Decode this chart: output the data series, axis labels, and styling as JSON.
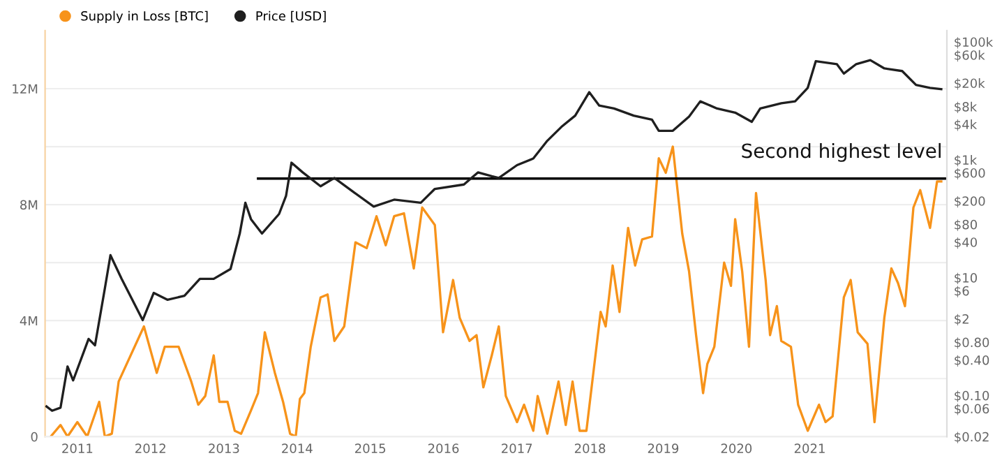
{
  "chart_data": {
    "type": "line",
    "legend": "top left",
    "grid": "y",
    "xlim": [
      "2010-07-24",
      "2022-11-16"
    ],
    "xticks": [
      "2011",
      "2012",
      "2013",
      "2014",
      "2015",
      "2016",
      "2017",
      "2018",
      "2019",
      "2020",
      "2021"
    ],
    "ylim": [
      0,
      14000000
    ],
    "yticks": [
      {
        "value": 0,
        "label": "0"
      },
      {
        "value": 2000000,
        "label": null
      },
      {
        "value": 4000000,
        "label": "4M"
      },
      {
        "value": 6000000,
        "label": null
      },
      {
        "value": 8000000,
        "label": "8M"
      },
      {
        "value": 10000000,
        "label": null
      },
      {
        "value": 12000000,
        "label": "12M"
      }
    ],
    "log": "y2",
    "y2lim": [
      0.02,
      155000
    ],
    "y2ticks": [
      {
        "value": 0.02,
        "label": "$0.02"
      },
      {
        "value": 0.06,
        "label": "$0.06"
      },
      {
        "value": 0.1,
        "label": "$0.10"
      },
      {
        "value": 0.4,
        "label": "$0.40"
      },
      {
        "value": 0.8,
        "label": "$0.80"
      },
      {
        "value": 2,
        "label": "$2"
      },
      {
        "value": 6,
        "label": "$6"
      },
      {
        "value": 10,
        "label": "$10"
      },
      {
        "value": 40,
        "label": "$40"
      },
      {
        "value": 80,
        "label": "$80"
      },
      {
        "value": 200,
        "label": "$200"
      },
      {
        "value": 600,
        "label": "$600"
      },
      {
        "value": 1000,
        "label": "$1k"
      },
      {
        "value": 4000,
        "label": "$4k"
      },
      {
        "value": 8000,
        "label": "$8k"
      },
      {
        "value": 20000,
        "label": "$20k"
      },
      {
        "value": 60000,
        "label": "$60k"
      },
      {
        "value": 100000,
        "label": "$100k"
      }
    ],
    "annotations": [
      "Second highest level"
    ],
    "series": [
      {
        "name": "Supply in Loss [BTC]",
        "axis": "y",
        "color": "#f7931a",
        "x": [
          "2010-08-21",
          "2010-10-09",
          "2010-11-13",
          "2011-01-01",
          "2011-02-19",
          "2011-04-20",
          "2011-05-18",
          "2011-06-22",
          "2011-07-26",
          "2011-11-09",
          "2011-11-29",
          "2012-02-01",
          "2012-03-12",
          "2012-05-20",
          "2012-07-22",
          "2012-08-26",
          "2012-09-30",
          "2012-11-11",
          "2012-12-09",
          "2013-01-19",
          "2013-02-24",
          "2013-03-28",
          "2013-05-16",
          "2013-06-20",
          "2013-07-24",
          "2013-09-12",
          "2013-10-23",
          "2013-11-27",
          "2013-12-25",
          "2014-01-15",
          "2014-02-06",
          "2014-03-10",
          "2014-04-28",
          "2014-06-02",
          "2014-07-06",
          "2014-08-24",
          "2014-10-19",
          "2014-12-14",
          "2015-02-01",
          "2015-03-19",
          "2015-04-30",
          "2015-06-18",
          "2015-08-06",
          "2015-09-17",
          "2015-11-19",
          "2015-12-30",
          "2016-02-18",
          "2016-03-22",
          "2016-05-10",
          "2016-06-14",
          "2016-07-18",
          "2016-08-29",
          "2016-10-03",
          "2016-11-07",
          "2017-01-02",
          "2017-02-06",
          "2017-03-24",
          "2017-04-15",
          "2017-06-02",
          "2017-07-28",
          "2017-09-02",
          "2017-10-06",
          "2017-11-10",
          "2017-12-14",
          "2018-02-23",
          "2018-03-20",
          "2018-04-24",
          "2018-05-28",
          "2018-07-10",
          "2018-08-14",
          "2018-09-18",
          "2018-11-06",
          "2018-12-10",
          "2019-01-14",
          "2019-02-18",
          "2019-04-06",
          "2019-05-10",
          "2019-06-14",
          "2019-07-19",
          "2019-08-09",
          "2019-09-13",
          "2019-11-01",
          "2019-12-05",
          "2019-12-26",
          "2020-01-30",
          "2020-03-04",
          "2020-04-08",
          "2020-05-26",
          "2020-06-17",
          "2020-07-21",
          "2020-08-12",
          "2020-09-29",
          "2020-11-04",
          "2020-12-22",
          "2021-02-16",
          "2021-03-21",
          "2021-04-25",
          "2021-06-20",
          "2021-07-24",
          "2021-08-28",
          "2021-10-16",
          "2021-11-20",
          "2022-01-08",
          "2022-02-12",
          "2022-03-17",
          "2022-04-21",
          "2022-06-02",
          "2022-07-06",
          "2022-08-24",
          "2022-09-28",
          "2022-10-19"
        ],
        "values": [
          0,
          400000,
          0,
          500000,
          0,
          1200000,
          0,
          100000,
          1900000,
          3500000,
          3800000,
          2200000,
          3100000,
          3100000,
          1900000,
          1100000,
          1400000,
          2800000,
          1200000,
          1200000,
          200000,
          100000,
          900000,
          1500000,
          3600000,
          2200000,
          1200000,
          100000,
          0,
          1300000,
          1500000,
          3100000,
          4800000,
          4900000,
          3300000,
          3800000,
          6700000,
          6500000,
          7600000,
          6600000,
          7600000,
          7700000,
          5800000,
          7900000,
          7300000,
          3600000,
          5400000,
          4100000,
          3300000,
          3500000,
          1700000,
          2800000,
          3800000,
          1400000,
          500000,
          1100000,
          200000,
          1400000,
          100000,
          1900000,
          400000,
          1900000,
          200000,
          200000,
          4300000,
          3800000,
          5900000,
          4300000,
          7200000,
          5900000,
          6800000,
          6900000,
          9600000,
          9100000,
          10000000,
          7000000,
          5700000,
          3500000,
          1500000,
          2500000,
          3100000,
          6000000,
          5200000,
          7500000,
          5700000,
          3100000,
          8400000,
          5400000,
          3500000,
          4500000,
          3300000,
          3100000,
          1100000,
          200000,
          1100000,
          500000,
          700000,
          4800000,
          5400000,
          3600000,
          3200000,
          500000,
          4100000,
          5800000,
          5300000,
          4500000,
          7900000,
          8500000,
          7200000,
          8800000,
          8800000
        ]
      },
      {
        "name": "Price [USD]",
        "axis": "y2",
        "color": "#1f1f1f",
        "x": [
          "2010-07-31",
          "2010-08-28",
          "2010-10-09",
          "2010-11-13",
          "2010-12-11",
          "2011-02-26",
          "2011-03-30",
          "2011-05-18",
          "2011-06-15",
          "2011-08-10",
          "2011-11-23",
          "2012-01-17",
          "2012-03-25",
          "2012-06-18",
          "2012-09-03",
          "2012-11-11",
          "2013-02-03",
          "2013-03-21",
          "2013-04-18",
          "2013-05-16",
          "2013-07-10",
          "2013-10-03",
          "2013-11-07",
          "2013-12-04",
          "2014-01-29",
          "2014-04-28",
          "2014-07-06",
          "2014-10-05",
          "2015-01-18",
          "2015-04-30",
          "2015-09-10",
          "2015-11-19",
          "2016-04-12",
          "2016-06-21",
          "2016-08-29",
          "2016-10-03",
          "2017-01-02",
          "2017-03-24",
          "2017-06-02",
          "2017-08-11",
          "2017-10-19",
          "2017-12-28",
          "2018-02-16",
          "2018-05-01",
          "2018-08-07",
          "2018-11-06",
          "2018-12-10",
          "2019-02-18",
          "2019-05-10",
          "2019-07-05",
          "2019-09-27",
          "2019-12-26",
          "2020-03-18",
          "2020-04-29",
          "2020-08-12",
          "2020-10-20",
          "2020-12-22",
          "2021-01-31",
          "2021-05-16",
          "2021-06-20",
          "2021-08-21",
          "2021-10-30",
          "2022-01-08",
          "2022-04-07",
          "2022-06-15",
          "2022-08-24",
          "2022-10-19"
        ],
        "values": [
          0.065,
          0.055,
          0.062,
          0.31,
          0.18,
          0.91,
          0.71,
          6.5,
          24,
          9.5,
          1.9,
          5.5,
          4.2,
          4.9,
          9.5,
          9.5,
          14,
          56,
          186,
          98,
          56,
          120,
          245,
          890,
          610,
          355,
          490,
          290,
          160,
          210,
          186,
          320,
          380,
          610,
          525,
          490,
          810,
          1050,
          2100,
          3600,
          5600,
          14000,
          8300,
          7400,
          5600,
          4800,
          3100,
          3100,
          5400,
          9800,
          7400,
          6300,
          4400,
          7400,
          9100,
          9800,
          16600,
          47000,
          42000,
          29000,
          42000,
          49000,
          35500,
          32000,
          18600,
          16600,
          15800
        ]
      },
      {
        "axis": "y",
        "color": "#000000",
        "x": [
          "2013-06-20",
          "2022-11-16"
        ],
        "values": [
          8900000,
          8900000
        ]
      }
    ]
  }
}
